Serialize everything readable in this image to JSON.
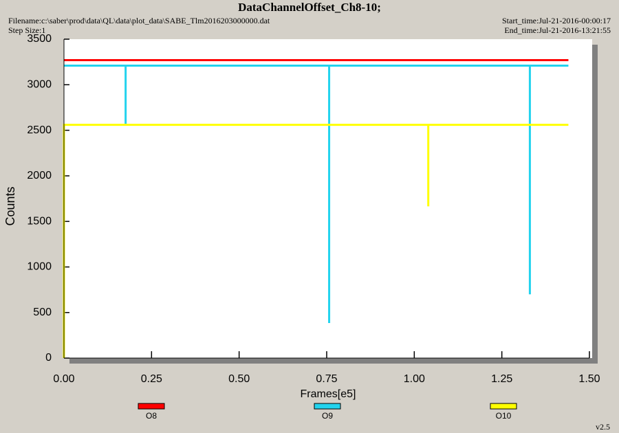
{
  "chart_data": {
    "type": "line",
    "title": "DataChannelOffset_Ch8-10;",
    "filename": "Filename:c:\\saber\\prod\\data\\QL\\data\\plot_data\\SABE_Tlm2016203000000.dat",
    "step_size": "Step Size:1",
    "start_time": "Start_time:Jul-21-2016-00:00:17",
    "end_time": "End_time:Jul-21-2016-13:21:55",
    "version": "v2.5",
    "x_label": "Frames[e5]",
    "y_label": "Counts",
    "xlim": [
      0,
      1.5
    ],
    "ylim": [
      0,
      3500
    ],
    "xticks": [
      {
        "value": 0,
        "label": "0.00"
      },
      {
        "value": 0.25,
        "label": "0.25"
      },
      {
        "value": 0.5,
        "label": "0.50"
      },
      {
        "value": 0.75,
        "label": "0.75"
      },
      {
        "value": 1,
        "label": "1.00"
      },
      {
        "value": 1.25,
        "label": "1.25"
      },
      {
        "value": 1.5,
        "label": "1.50"
      }
    ],
    "yticks": [
      0,
      500,
      1000,
      1500,
      2000,
      2500,
      3000,
      3500
    ],
    "series": [
      {
        "name": "O8",
        "color": "#ff0000",
        "x": [
          0,
          1.44
        ],
        "values": [
          3270,
          3270
        ]
      },
      {
        "name": "O9",
        "color": "#22d3ee",
        "x": [
          0,
          0.176,
          0.176,
          0.176,
          0.757,
          0.757,
          0.757,
          1.33,
          1.33,
          1.33,
          1.44
        ],
        "values": [
          3210,
          3210,
          2570,
          3210,
          3210,
          385,
          3210,
          3210,
          700,
          3210,
          3210
        ]
      },
      {
        "name": "O10",
        "color": "#ffff00",
        "x": [
          0,
          0,
          1.04,
          1.04,
          1.04,
          1.44
        ],
        "values": [
          0,
          2560,
          2560,
          1665,
          2560,
          2560
        ]
      }
    ]
  }
}
